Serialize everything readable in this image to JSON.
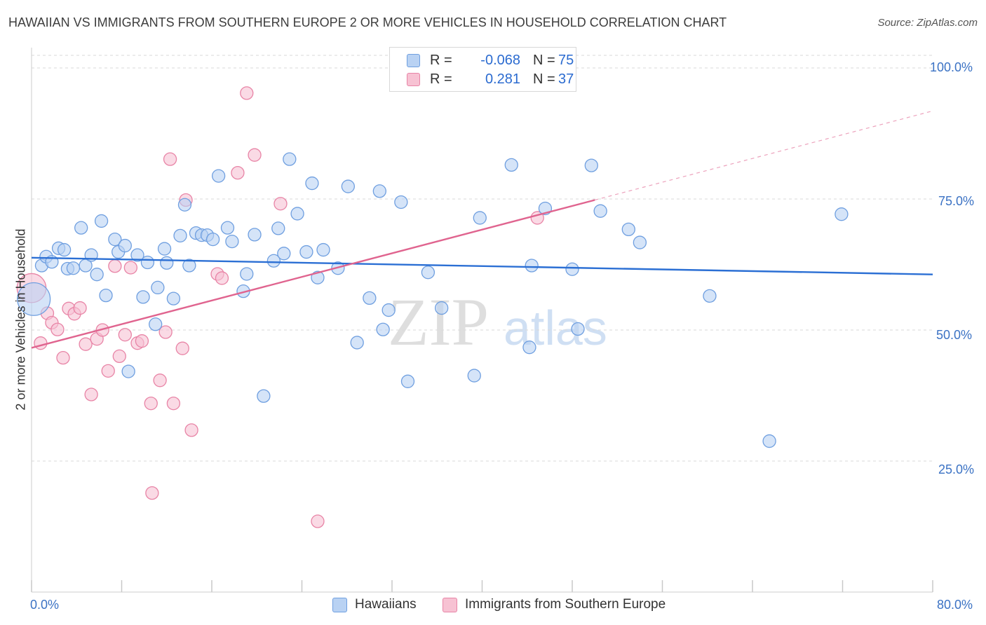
{
  "title": "HAWAIIAN VS IMMIGRANTS FROM SOUTHERN EUROPE 2 OR MORE VEHICLES IN HOUSEHOLD CORRELATION CHART",
  "source": "Source: ZipAtlas.com",
  "watermark": {
    "zip": "ZIP",
    "atlas": "atlas"
  },
  "legend": {
    "rows": [
      {
        "r_label": "R =",
        "r_value": "-0.068",
        "n_label": "N =",
        "n_value": "75"
      },
      {
        "r_label": "R =",
        "r_value": "0.281",
        "n_label": "N =",
        "n_value": "37"
      }
    ]
  },
  "colors": {
    "hawaiian_fill": "#b9d2f3",
    "hawaiian_stroke": "#6f9fe0",
    "hawaiian_line": "#2b6fd4",
    "immigrant_fill": "#f7c2d3",
    "immigrant_stroke": "#e884a6",
    "immigrant_line": "#e0648f",
    "grid": "#d9d9d9",
    "axis_text": "#3b72c4"
  },
  "chart_data": {
    "type": "scatter",
    "title": "HAWAIIAN VS IMMIGRANTS FROM SOUTHERN EUROPE 2 OR MORE VEHICLES IN HOUSEHOLD CORRELATION CHART",
    "xlabel": "",
    "ylabel": "2 or more Vehicles in Household",
    "xlim": [
      0,
      80
    ],
    "ylim": [
      0,
      100
    ],
    "x_tick_labels": [
      "0.0%",
      "80.0%"
    ],
    "y_tick_labels": [
      "100.0%",
      "75.0%",
      "50.0%",
      "25.0%"
    ],
    "y_ticks": [
      100,
      75,
      50,
      25
    ],
    "grid": true,
    "legend_position": "top-center",
    "series": [
      {
        "name": "Hawaiians",
        "r": -0.068,
        "n": 75,
        "trend": {
          "x": [
            0,
            80
          ],
          "y": [
            63.8,
            60.6
          ]
        },
        "points": [
          [
            0.2,
            55.9,
            2.6
          ],
          [
            0.9,
            62.3,
            1
          ],
          [
            1.3,
            64.0,
            1
          ],
          [
            1.8,
            63.0,
            1
          ],
          [
            2.4,
            65.6,
            1
          ],
          [
            2.9,
            65.3,
            1
          ],
          [
            3.2,
            61.7,
            1
          ],
          [
            3.7,
            61.8,
            1
          ],
          [
            4.4,
            69.5,
            1
          ],
          [
            4.8,
            62.3,
            1
          ],
          [
            5.3,
            64.3,
            1
          ],
          [
            5.8,
            60.6,
            1
          ],
          [
            6.2,
            70.8,
            1
          ],
          [
            6.6,
            56.6,
            1
          ],
          [
            7.4,
            67.3,
            1
          ],
          [
            7.7,
            64.9,
            1
          ],
          [
            8.3,
            66.1,
            1
          ],
          [
            8.6,
            42.1,
            1
          ],
          [
            9.4,
            64.3,
            1
          ],
          [
            9.9,
            56.3,
            1
          ],
          [
            10.3,
            62.9,
            1
          ],
          [
            11.0,
            51.1,
            1
          ],
          [
            11.2,
            58.1,
            1
          ],
          [
            11.8,
            65.5,
            1
          ],
          [
            12.0,
            62.8,
            1
          ],
          [
            12.6,
            56.0,
            1
          ],
          [
            13.2,
            68.0,
            1
          ],
          [
            13.6,
            73.9,
            1
          ],
          [
            14.0,
            62.3,
            1
          ],
          [
            14.6,
            68.5,
            1
          ],
          [
            15.1,
            68.1,
            1
          ],
          [
            15.6,
            68.1,
            1
          ],
          [
            16.1,
            67.3,
            1
          ],
          [
            16.6,
            79.4,
            1
          ],
          [
            17.4,
            69.5,
            1
          ],
          [
            17.8,
            66.9,
            1
          ],
          [
            18.8,
            57.4,
            1
          ],
          [
            19.1,
            60.7,
            1
          ],
          [
            19.8,
            68.2,
            1
          ],
          [
            20.6,
            37.4,
            1
          ],
          [
            21.5,
            63.2,
            1
          ],
          [
            21.9,
            69.4,
            1
          ],
          [
            22.4,
            64.6,
            1
          ],
          [
            22.9,
            82.6,
            1
          ],
          [
            23.6,
            72.2,
            1
          ],
          [
            24.4,
            64.9,
            1
          ],
          [
            24.9,
            78.0,
            1
          ],
          [
            25.4,
            60.0,
            1
          ],
          [
            25.9,
            65.3,
            1
          ],
          [
            27.2,
            61.8,
            1
          ],
          [
            28.1,
            77.4,
            1
          ],
          [
            28.9,
            47.6,
            1
          ],
          [
            30.0,
            56.1,
            1
          ],
          [
            30.9,
            76.5,
            1
          ],
          [
            31.2,
            50.1,
            1
          ],
          [
            31.7,
            53.8,
            1
          ],
          [
            32.8,
            74.4,
            1
          ],
          [
            33.4,
            40.2,
            1
          ],
          [
            35.2,
            61.0,
            1
          ],
          [
            36.4,
            54.2,
            1
          ],
          [
            39.3,
            41.3,
            1
          ],
          [
            39.8,
            71.4,
            1
          ],
          [
            42.6,
            81.5,
            1
          ],
          [
            44.2,
            46.7,
            1
          ],
          [
            44.4,
            62.3,
            1
          ],
          [
            45.6,
            73.2,
            1
          ],
          [
            48.0,
            61.6,
            1
          ],
          [
            48.5,
            50.2,
            1
          ],
          [
            49.7,
            81.4,
            1
          ],
          [
            50.5,
            72.7,
            1
          ],
          [
            53.0,
            69.2,
            1
          ],
          [
            54.0,
            66.7,
            1
          ],
          [
            60.2,
            56.5,
            1
          ],
          [
            65.5,
            28.8,
            1
          ],
          [
            71.9,
            72.1,
            1
          ]
        ]
      },
      {
        "name": "Immigrants from Southern Europe",
        "r": 0.281,
        "n": 37,
        "trend": {
          "x": [
            0,
            50
          ],
          "y": [
            46.6,
            74.8
          ]
        },
        "trend_extension": {
          "x": [
            50,
            80
          ],
          "y": [
            74.8,
            91.8
          ]
        },
        "points": [
          [
            0.0,
            58.0,
            2.3
          ],
          [
            0.8,
            47.5,
            1
          ],
          [
            1.4,
            53.2,
            1
          ],
          [
            1.8,
            51.4,
            1
          ],
          [
            2.3,
            50.1,
            1
          ],
          [
            2.8,
            44.7,
            1
          ],
          [
            3.3,
            54.1,
            1
          ],
          [
            3.8,
            53.1,
            1
          ],
          [
            4.3,
            54.2,
            1
          ],
          [
            4.8,
            47.3,
            1
          ],
          [
            5.3,
            37.7,
            1
          ],
          [
            5.8,
            48.3,
            1
          ],
          [
            6.3,
            50.0,
            1
          ],
          [
            6.8,
            42.2,
            1
          ],
          [
            7.4,
            62.2,
            1
          ],
          [
            7.8,
            45.0,
            1
          ],
          [
            8.3,
            49.1,
            1
          ],
          [
            8.8,
            61.9,
            1
          ],
          [
            9.4,
            47.5,
            1
          ],
          [
            9.8,
            47.9,
            1
          ],
          [
            10.6,
            36.0,
            1
          ],
          [
            10.7,
            18.9,
            1
          ],
          [
            11.4,
            40.4,
            1
          ],
          [
            11.9,
            49.6,
            1
          ],
          [
            12.3,
            82.6,
            1
          ],
          [
            12.6,
            36.0,
            1
          ],
          [
            13.4,
            46.5,
            1
          ],
          [
            13.7,
            74.8,
            1
          ],
          [
            14.2,
            30.9,
            1
          ],
          [
            16.5,
            60.7,
            1
          ],
          [
            16.9,
            59.9,
            1
          ],
          [
            18.3,
            80.0,
            1
          ],
          [
            19.1,
            95.2,
            1
          ],
          [
            19.8,
            83.4,
            1
          ],
          [
            22.1,
            74.1,
            1
          ],
          [
            25.4,
            13.5,
            1
          ],
          [
            44.9,
            71.4,
            1
          ]
        ]
      }
    ]
  },
  "bottom_legend": [
    {
      "label": "Hawaiians"
    },
    {
      "label": "Immigrants from Southern Europe"
    }
  ]
}
